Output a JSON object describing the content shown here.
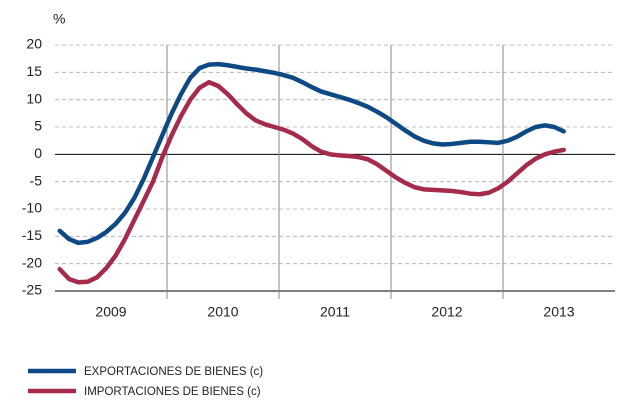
{
  "chart_data": {
    "type": "line",
    "y_unit_label": "%",
    "x": [
      2009.042,
      2009.125,
      2009.208,
      2009.292,
      2009.375,
      2009.458,
      2009.542,
      2009.625,
      2009.708,
      2009.792,
      2009.875,
      2009.958,
      2010.042,
      2010.125,
      2010.208,
      2010.292,
      2010.375,
      2010.458,
      2010.542,
      2010.625,
      2010.708,
      2010.792,
      2010.875,
      2010.958,
      2011.042,
      2011.125,
      2011.208,
      2011.292,
      2011.375,
      2011.458,
      2011.542,
      2011.625,
      2011.708,
      2011.792,
      2011.875,
      2011.958,
      2012.042,
      2012.125,
      2012.208,
      2012.292,
      2012.375,
      2012.458,
      2012.542,
      2012.625,
      2012.708,
      2012.792,
      2012.875,
      2012.958,
      2013.042,
      2013.125,
      2013.208,
      2013.292,
      2013.375,
      2013.458,
      2013.542
    ],
    "series": [
      {
        "name": "EXPORTACIONES DE BIENES (c)",
        "color": "#0d4a85",
        "values": [
          -14,
          -15.5,
          -16.2,
          -16,
          -15.3,
          -14.2,
          -12.7,
          -10.7,
          -8,
          -4.5,
          -0.5,
          3.5,
          7.5,
          11,
          14,
          15.8,
          16.4,
          16.5,
          16.3,
          16,
          15.7,
          15.5,
          15.2,
          14.9,
          14.5,
          14,
          13.2,
          12.3,
          11.5,
          11,
          10.5,
          10,
          9.4,
          8.7,
          7.8,
          6.8,
          5.6,
          4.4,
          3.3,
          2.5,
          2,
          1.8,
          1.9,
          2.1,
          2.3,
          2.3,
          2.2,
          2.1,
          2.5,
          3.2,
          4.2,
          5,
          5.3,
          5,
          4.2
        ]
      },
      {
        "name": "IMPORTACIONES DE BIENES (c)",
        "color": "#a52a4c",
        "values": [
          -21,
          -22.8,
          -23.4,
          -23.3,
          -22.5,
          -20.8,
          -18.5,
          -15.5,
          -12,
          -8.5,
          -5,
          -0.5,
          3.5,
          7,
          10,
          12.2,
          13.2,
          12.5,
          11,
          9.2,
          7.5,
          6.2,
          5.5,
          5,
          4.5,
          3.8,
          2.8,
          1.5,
          0.5,
          0,
          -0.2,
          -0.3,
          -0.5,
          -0.9,
          -1.8,
          -3,
          -4.2,
          -5.2,
          -6,
          -6.4,
          -6.5,
          -6.6,
          -6.7,
          -6.9,
          -7.2,
          -7.3,
          -7,
          -6.2,
          -5,
          -3.5,
          -2,
          -0.8,
          0,
          0.5,
          0.8
        ]
      }
    ],
    "xlim": [
      2009,
      2014
    ],
    "xticks": [
      {
        "value": 2009.5,
        "label": "2009"
      },
      {
        "value": 2010.5,
        "label": "2010"
      },
      {
        "value": 2011.5,
        "label": "2011"
      },
      {
        "value": 2012.5,
        "label": "2012"
      },
      {
        "value": 2013.5,
        "label": "2013"
      }
    ],
    "ylim": [
      -25,
      20
    ],
    "yticks": [
      -25,
      -20,
      -15,
      -10,
      -5,
      0,
      5,
      10,
      15,
      20
    ],
    "grid": true,
    "legend": "bottom"
  }
}
